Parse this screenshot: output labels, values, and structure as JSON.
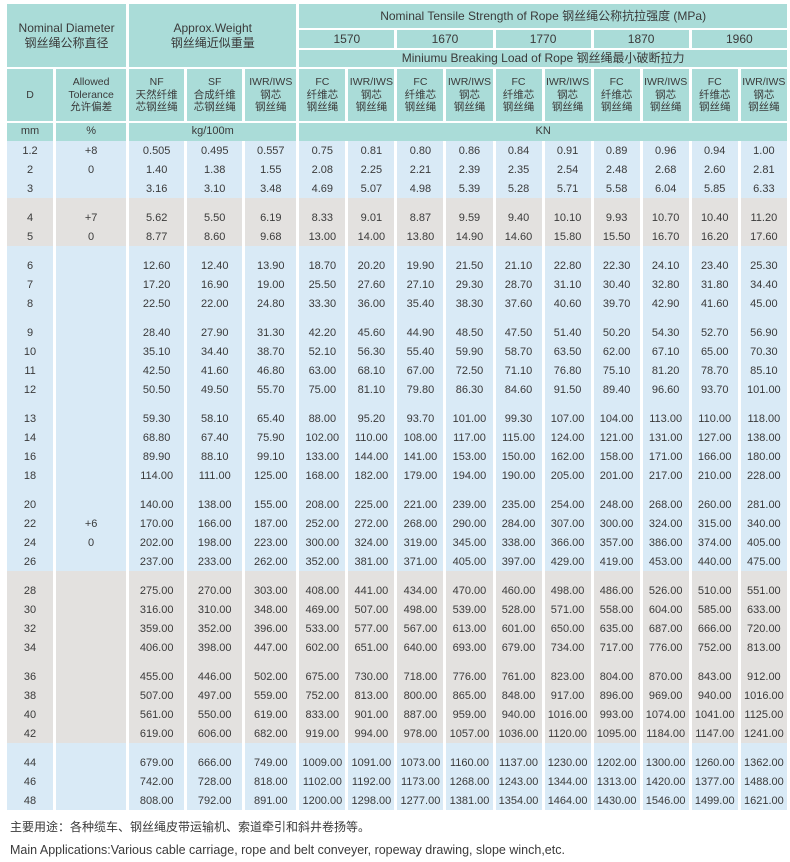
{
  "header": {
    "nominal_diameter": "Nominal Diameter\n钢丝绳公称直径",
    "approx_weight": "Approx.Weight\n钢丝绳近似重量",
    "tensile_title": "Nominal Tensile Strength of Rope 钢丝绳公称抗拉强度 (MPa)",
    "strengths": [
      "1570",
      "1670",
      "1770",
      "1870",
      "1960"
    ],
    "breaking_title": "Miniumu Breaking Load of Rope 钢丝绳最小破断拉力",
    "col_d": "D",
    "col_tolerance": "Allowed\nTolerance\n允许偏差",
    "col_nf": "NF\n天然纤维\n芯钢丝绳",
    "col_sf": "SF\n合成纤维\n芯钢丝绳",
    "col_iwr": "IWR/IWS\n钢芯\n钢丝绳",
    "col_fc": "FC\n纤维芯\n钢丝绳",
    "unit_mm": "mm",
    "unit_pct": "%",
    "unit_kg": "kg/100m",
    "unit_kn": "KN"
  },
  "colors": {
    "header_teal": "#aadcd8",
    "band_blue": "#d9eaf6",
    "band_gray": "#e3e1df"
  },
  "table": {
    "groups": [
      {
        "band": "blue",
        "rows": [
          {
            "d": "1.2",
            "tol": "+8",
            "values": [
              "0.505",
              "0.495",
              "0.557",
              "0.75",
              "0.81",
              "0.80",
              "0.86",
              "0.84",
              "0.91",
              "0.89",
              "0.96",
              "0.94",
              "1.00"
            ]
          },
          {
            "d": "2",
            "tol": "0",
            "values": [
              "1.40",
              "1.38",
              "1.55",
              "2.08",
              "2.25",
              "2.21",
              "2.39",
              "2.35",
              "2.54",
              "2.48",
              "2.68",
              "2.60",
              "2.81"
            ]
          },
          {
            "d": "3",
            "tol": "",
            "values": [
              "3.16",
              "3.10",
              "3.48",
              "4.69",
              "5.07",
              "4.98",
              "5.39",
              "5.28",
              "5.71",
              "5.58",
              "6.04",
              "5.85",
              "6.33"
            ]
          }
        ]
      },
      {
        "band": "gray",
        "rows": [
          {
            "d": "4",
            "tol": "+7",
            "values": [
              "5.62",
              "5.50",
              "6.19",
              "8.33",
              "9.01",
              "8.87",
              "9.59",
              "9.40",
              "10.10",
              "9.93",
              "10.70",
              "10.40",
              "11.20"
            ]
          },
          {
            "d": "5",
            "tol": "0",
            "values": [
              "8.77",
              "8.60",
              "9.68",
              "13.00",
              "14.00",
              "13.80",
              "14.90",
              "14.60",
              "15.80",
              "15.50",
              "16.70",
              "16.20",
              "17.60"
            ]
          }
        ]
      },
      {
        "band": "blue",
        "rows": [
          {
            "d": "6",
            "tol": "",
            "values": [
              "12.60",
              "12.40",
              "13.90",
              "18.70",
              "20.20",
              "19.90",
              "21.50",
              "21.10",
              "22.80",
              "22.30",
              "24.10",
              "23.40",
              "25.30"
            ]
          },
          {
            "d": "7",
            "tol": "",
            "values": [
              "17.20",
              "16.90",
              "19.00",
              "25.50",
              "27.60",
              "27.10",
              "29.30",
              "28.70",
              "31.10",
              "30.40",
              "32.80",
              "31.80",
              "34.40"
            ]
          },
          {
            "d": "8",
            "tol": "",
            "values": [
              "22.50",
              "22.00",
              "24.80",
              "33.30",
              "36.00",
              "35.40",
              "38.30",
              "37.60",
              "40.60",
              "39.70",
              "42.90",
              "41.60",
              "45.00"
            ]
          }
        ]
      },
      {
        "band": "blue",
        "rows": [
          {
            "d": "9",
            "tol": "",
            "values": [
              "28.40",
              "27.90",
              "31.30",
              "42.20",
              "45.60",
              "44.90",
              "48.50",
              "47.50",
              "51.40",
              "50.20",
              "54.30",
              "52.70",
              "56.90"
            ]
          },
          {
            "d": "10",
            "tol": "",
            "values": [
              "35.10",
              "34.40",
              "38.70",
              "52.10",
              "56.30",
              "55.40",
              "59.90",
              "58.70",
              "63.50",
              "62.00",
              "67.10",
              "65.00",
              "70.30"
            ]
          },
          {
            "d": "11",
            "tol": "",
            "values": [
              "42.50",
              "41.60",
              "46.80",
              "63.00",
              "68.10",
              "67.00",
              "72.50",
              "71.10",
              "76.80",
              "75.10",
              "81.20",
              "78.70",
              "85.10"
            ]
          },
          {
            "d": "12",
            "tol": "",
            "values": [
              "50.50",
              "49.50",
              "55.70",
              "75.00",
              "81.10",
              "79.80",
              "86.30",
              "84.60",
              "91.50",
              "89.40",
              "96.60",
              "93.70",
              "101.00"
            ]
          }
        ]
      },
      {
        "band": "blue",
        "rows": [
          {
            "d": "13",
            "tol": "",
            "values": [
              "59.30",
              "58.10",
              "65.40",
              "88.00",
              "95.20",
              "93.70",
              "101.00",
              "99.30",
              "107.00",
              "104.00",
              "113.00",
              "110.00",
              "118.00"
            ]
          },
          {
            "d": "14",
            "tol": "",
            "values": [
              "68.80",
              "67.40",
              "75.90",
              "102.00",
              "110.00",
              "108.00",
              "117.00",
              "115.00",
              "124.00",
              "121.00",
              "131.00",
              "127.00",
              "138.00"
            ]
          },
          {
            "d": "16",
            "tol": "",
            "values": [
              "89.90",
              "88.10",
              "99.10",
              "133.00",
              "144.00",
              "141.00",
              "153.00",
              "150.00",
              "162.00",
              "158.00",
              "171.00",
              "166.00",
              "180.00"
            ]
          },
          {
            "d": "18",
            "tol": "",
            "values": [
              "114.00",
              "111.00",
              "125.00",
              "168.00",
              "182.00",
              "179.00",
              "194.00",
              "190.00",
              "205.00",
              "201.00",
              "217.00",
              "210.00",
              "228.00"
            ]
          }
        ]
      },
      {
        "band": "blue",
        "rows": [
          {
            "d": "20",
            "tol": "",
            "values": [
              "140.00",
              "138.00",
              "155.00",
              "208.00",
              "225.00",
              "221.00",
              "239.00",
              "235.00",
              "254.00",
              "248.00",
              "268.00",
              "260.00",
              "281.00"
            ]
          },
          {
            "d": "22",
            "tol": "+6",
            "values": [
              "170.00",
              "166.00",
              "187.00",
              "252.00",
              "272.00",
              "268.00",
              "290.00",
              "284.00",
              "307.00",
              "300.00",
              "324.00",
              "315.00",
              "340.00"
            ]
          },
          {
            "d": "24",
            "tol": "0",
            "values": [
              "202.00",
              "198.00",
              "223.00",
              "300.00",
              "324.00",
              "319.00",
              "345.00",
              "338.00",
              "366.00",
              "357.00",
              "386.00",
              "374.00",
              "405.00"
            ]
          },
          {
            "d": "26",
            "tol": "",
            "values": [
              "237.00",
              "233.00",
              "262.00",
              "352.00",
              "381.00",
              "371.00",
              "405.00",
              "397.00",
              "429.00",
              "419.00",
              "453.00",
              "440.00",
              "475.00"
            ]
          }
        ]
      },
      {
        "band": "gray",
        "rows": [
          {
            "d": "28",
            "tol": "",
            "values": [
              "275.00",
              "270.00",
              "303.00",
              "408.00",
              "441.00",
              "434.00",
              "470.00",
              "460.00",
              "498.00",
              "486.00",
              "526.00",
              "510.00",
              "551.00"
            ]
          },
          {
            "d": "30",
            "tol": "",
            "values": [
              "316.00",
              "310.00",
              "348.00",
              "469.00",
              "507.00",
              "498.00",
              "539.00",
              "528.00",
              "571.00",
              "558.00",
              "604.00",
              "585.00",
              "633.00"
            ]
          },
          {
            "d": "32",
            "tol": "",
            "values": [
              "359.00",
              "352.00",
              "396.00",
              "533.00",
              "577.00",
              "567.00",
              "613.00",
              "601.00",
              "650.00",
              "635.00",
              "687.00",
              "666.00",
              "720.00"
            ]
          },
          {
            "d": "34",
            "tol": "",
            "values": [
              "406.00",
              "398.00",
              "447.00",
              "602.00",
              "651.00",
              "640.00",
              "693.00",
              "679.00",
              "734.00",
              "717.00",
              "776.00",
              "752.00",
              "813.00"
            ]
          }
        ]
      },
      {
        "band": "gray",
        "rows": [
          {
            "d": "36",
            "tol": "",
            "values": [
              "455.00",
              "446.00",
              "502.00",
              "675.00",
              "730.00",
              "718.00",
              "776.00",
              "761.00",
              "823.00",
              "804.00",
              "870.00",
              "843.00",
              "912.00"
            ]
          },
          {
            "d": "38",
            "tol": "",
            "values": [
              "507.00",
              "497.00",
              "559.00",
              "752.00",
              "813.00",
              "800.00",
              "865.00",
              "848.00",
              "917.00",
              "896.00",
              "969.00",
              "940.00",
              "1016.00"
            ]
          },
          {
            "d": "40",
            "tol": "",
            "values": [
              "561.00",
              "550.00",
              "619.00",
              "833.00",
              "901.00",
              "887.00",
              "959.00",
              "940.00",
              "1016.00",
              "993.00",
              "1074.00",
              "1041.00",
              "1125.00"
            ]
          },
          {
            "d": "42",
            "tol": "",
            "values": [
              "619.00",
              "606.00",
              "682.00",
              "919.00",
              "994.00",
              "978.00",
              "1057.00",
              "1036.00",
              "1120.00",
              "1095.00",
              "1184.00",
              "1147.00",
              "1241.00"
            ]
          }
        ]
      },
      {
        "band": "blue",
        "rows": [
          {
            "d": "44",
            "tol": "",
            "values": [
              "679.00",
              "666.00",
              "749.00",
              "1009.00",
              "1091.00",
              "1073.00",
              "1160.00",
              "1137.00",
              "1230.00",
              "1202.00",
              "1300.00",
              "1260.00",
              "1362.00"
            ]
          },
          {
            "d": "46",
            "tol": "",
            "values": [
              "742.00",
              "728.00",
              "818.00",
              "1102.00",
              "1192.00",
              "1173.00",
              "1268.00",
              "1243.00",
              "1344.00",
              "1313.00",
              "1420.00",
              "1377.00",
              "1488.00"
            ]
          },
          {
            "d": "48",
            "tol": "",
            "values": [
              "808.00",
              "792.00",
              "891.00",
              "1200.00",
              "1298.00",
              "1277.00",
              "1381.00",
              "1354.00",
              "1464.00",
              "1430.00",
              "1546.00",
              "1499.00",
              "1621.00"
            ]
          }
        ]
      }
    ]
  },
  "footer": {
    "zh": "主要用途：各种缆车、钢丝绳皮带运输机、索道牵引和斜井卷扬等。",
    "en": "Main Applications:Various cable carriage, rope and belt conveyer, ropeway drawing, slope winch,etc."
  }
}
